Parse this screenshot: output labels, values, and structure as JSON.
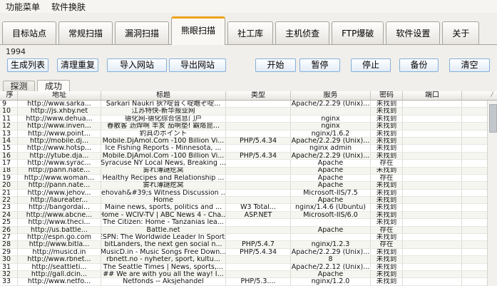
{
  "menu": {
    "items": [
      {
        "label": "功能菜单"
      },
      {
        "label": "软件换肤"
      }
    ]
  },
  "tabs": [
    {
      "label": "目标站点",
      "active": false
    },
    {
      "label": "常规扫描",
      "active": false
    },
    {
      "label": "漏洞扫描",
      "active": false
    },
    {
      "label": "熊眼扫描",
      "active": true
    },
    {
      "label": "社工库",
      "active": false
    },
    {
      "label": "主机侦查",
      "active": false
    },
    {
      "label": "FTP爆破",
      "active": false
    },
    {
      "label": "软件设置",
      "active": false
    },
    {
      "label": "关于",
      "active": false
    }
  ],
  "toolbar": {
    "counter": "1994",
    "left_buttons": [
      "生成列表",
      "清理重复",
      "导入网站",
      "导出网站"
    ],
    "right_buttons": [
      "开始",
      "暂停",
      "停止",
      "备份",
      "清空"
    ]
  },
  "subtabs": [
    {
      "label": "探测",
      "active": false
    },
    {
      "label": "成功",
      "active": true
    }
  ],
  "icons": {
    "scroll_corner": "/"
  },
  "colors": {
    "accent_tab_orange": "#EDA41B",
    "button_border_blue": "#83B0DA",
    "row_alt": "#F4F6EF",
    "grid_line": "#DEDCD6"
  },
  "grid": {
    "columns": [
      "序",
      "地址",
      "标题",
      "类型",
      "服务",
      "密码",
      "端口",
      ""
    ],
    "cell_keys": [
      "no",
      "url",
      "title",
      "type",
      "service",
      "password",
      "port",
      "extra"
    ],
    "status_values": {
      "not_found": "未找到",
      "exists": "存在"
    },
    "rows": [
      {
        "no": "9",
        "url": "http://www.sarka...",
        "title": "Sarkari Naukri 狄?啶音く啶瞻ぞ啶...",
        "type": "",
        "service": "Apache/2.2.29 (Unix)...",
        "password": "未找到",
        "port": ""
      },
      {
        "no": "10",
        "url": "http://js.xhby.net",
        "title": "江苏特快-新华报业网",
        "type": "",
        "service": "",
        "password": "未找到",
        "port": ""
      },
      {
        "no": "11",
        "url": "http://www.dehua...",
        "title": "德化网-德化综合信息门户",
        "type": "",
        "service": "nginx",
        "password": "未找到",
        "port": ""
      },
      {
        "no": "12",
        "url": "http://www.inven...",
        "title": "春散客 沥焊啊 丰亥 茄啊垫! 霸烙昆...",
        "type": "",
        "service": "nginx",
        "password": "未找到",
        "port": ""
      },
      {
        "no": "13",
        "url": "http://www.point...",
        "title": "釣具のポイント",
        "type": "",
        "service": "nginx/1.6.2",
        "password": "未找到",
        "port": ""
      },
      {
        "no": "14",
        "url": "http://mobile.dj...",
        "title": "Mobile.DjAmol.Com -100 Billion Vi...",
        "type": "PHP/5.4.34",
        "service": "Apache/2.2.29 (Unix)...",
        "password": "未找到",
        "port": ""
      },
      {
        "no": "15",
        "url": "http://www.hotsp...",
        "title": "Ice Fishing Reports - Minnesota, ...",
        "type": "",
        "service": "nginx admin",
        "password": "未找到",
        "port": ""
      },
      {
        "no": "16",
        "url": "http://ytube.dja...",
        "title": "Mobile.DjAmol.Com -100 Billion Vi...",
        "type": "PHP/5.4.34",
        "service": "Apache/2.2.29 (Unix)...",
        "password": "未找到",
        "port": ""
      },
      {
        "no": "17",
        "url": "http://www.syrac...",
        "title": "Syracuse NY Local News, Breaking ...",
        "type": "",
        "service": "Apache",
        "password": "存在",
        "port": ""
      },
      {
        "no": "18",
        "url": "http://pann.nate...",
        "title": "雾れ薄謎疙窝",
        "type": "",
        "service": "Apache",
        "password": "未找到",
        "port": ""
      },
      {
        "no": "19",
        "url": "http://www.woman...",
        "title": "Healthy Recipes and Relationship ...",
        "type": "",
        "service": "Apache",
        "password": "存在",
        "port": ""
      },
      {
        "no": "20",
        "url": "http://pann.nate...",
        "title": "雾れ薄謎疙窝",
        "type": "",
        "service": "Apache",
        "password": "未找到",
        "port": ""
      },
      {
        "no": "21",
        "url": "http://www.jehov...",
        "title": "Jehovah&#39;s Witness Discussion ...",
        "type": "",
        "service": "Microsoft-IIS/7.5",
        "password": "未找到",
        "port": ""
      },
      {
        "no": "22",
        "url": "http://laureater...",
        "title": "Home",
        "type": "",
        "service": "Apache",
        "password": "未找到",
        "port": ""
      },
      {
        "no": "23",
        "url": "http://bangordai...",
        "title": "Maine news, sports, politics and ...",
        "type": "W3 Total...",
        "service": "nginx/1.4.6 (Ubuntu)",
        "password": "未找到",
        "port": ""
      },
      {
        "no": "24",
        "url": "http://www.abcne...",
        "title": "Home - WCIV-TV | ABC News 4 - Cha...",
        "type": "ASP.NET",
        "service": "Microsoft-IIS/6.0",
        "password": "未找到",
        "port": ""
      },
      {
        "no": "25",
        "url": "http://www.theci...",
        "title": "The Citizen: Home - Tanzanias lea...",
        "type": "",
        "service": "",
        "password": "未找到",
        "port": ""
      },
      {
        "no": "26",
        "url": "http://us.battle...",
        "title": "Battle.net",
        "type": "",
        "service": "Apache",
        "password": "存在",
        "port": ""
      },
      {
        "no": "27",
        "url": "http://espn.go.com",
        "title": "ESPN: The Worldwide Leader In Sports",
        "type": "",
        "service": "",
        "password": "未找到",
        "port": ""
      },
      {
        "no": "28",
        "url": "http://www.bitla...",
        "title": "bitLanders, the next gen social n...",
        "type": "PHP/5.4.7",
        "service": "nginx/1.2.3",
        "password": "存在",
        "port": ""
      },
      {
        "no": "29",
        "url": "http://musicd.in",
        "title": "MusicD.in - Music Songs Free Down...",
        "type": "PHP/5.4.34",
        "service": "Apache/2.2.29 (Unix)...",
        "password": "未找到",
        "port": ""
      },
      {
        "no": "30",
        "url": "http://www.rbnet...",
        "title": "rbnett.no - nyheter, sport, kultu...",
        "type": "",
        "service": "8",
        "password": "未找到",
        "port": ""
      },
      {
        "no": "31",
        "url": "http://seattleti...",
        "title": "The Seattle Times | News, sports,...",
        "type": "",
        "service": "Apache/2.2.12 (Unix)...",
        "password": "未找到",
        "port": ""
      },
      {
        "no": "32",
        "url": "http://gall.dcin...",
        "title": "## We are with you all the way! I...",
        "type": "",
        "service": "Apache",
        "password": "未找到",
        "port": ""
      },
      {
        "no": "33",
        "url": "http://www.netfo...",
        "title": "Netfonds -- Aksjehandel",
        "type": "PHP/5.3....",
        "service": "nginx/1.2.0",
        "password": "未找到",
        "port": ""
      }
    ]
  }
}
